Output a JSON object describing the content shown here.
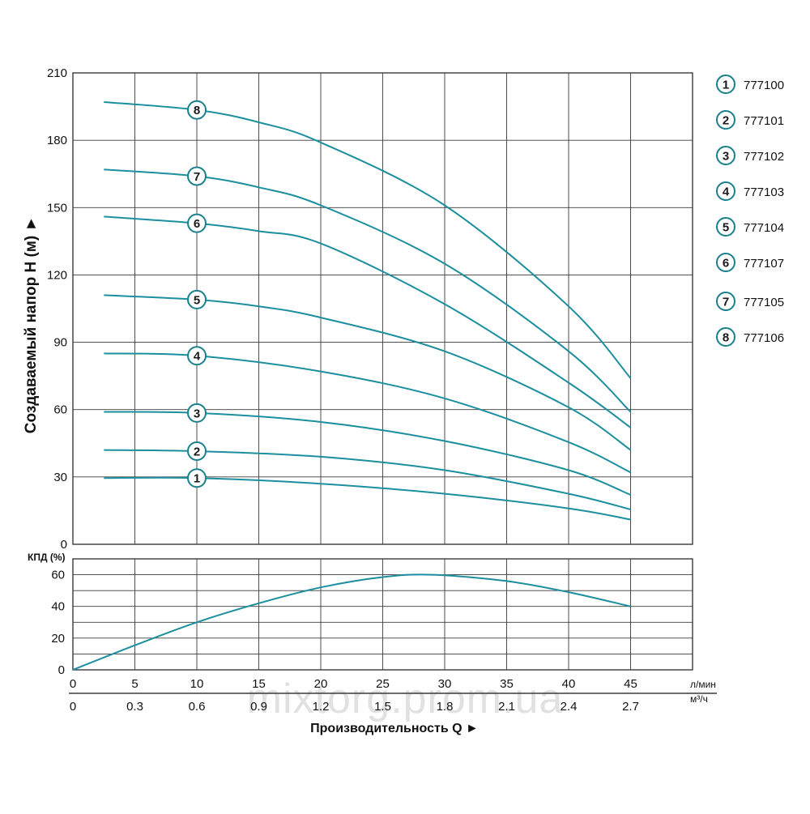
{
  "colors": {
    "curve": "#1b8f9e",
    "grid": "#3a3a3a",
    "marker_stroke": "#1b7f8c"
  },
  "watermark": "mixtorg.prom.ua",
  "chart_data": [
    {
      "type": "line",
      "title": "",
      "ylabel": "Создаваемый напор H (м) ►",
      "xlabel": "",
      "xlim": [
        0,
        50
      ],
      "ylim": [
        0,
        210
      ],
      "yticks": [
        "0",
        "30",
        "60",
        "90",
        "120",
        "150",
        "180",
        "210"
      ],
      "grid": true,
      "legend": "right",
      "legend_entries": [
        {
          "marker": "1",
          "label": "777100"
        },
        {
          "marker": "2",
          "label": "777101"
        },
        {
          "marker": "3",
          "label": "777102"
        },
        {
          "marker": "4",
          "label": "777103"
        },
        {
          "marker": "5",
          "label": "777104"
        },
        {
          "marker": "6",
          "label": "777107"
        },
        {
          "marker": "7",
          "label": "777105"
        },
        {
          "marker": "8",
          "label": "777106"
        }
      ],
      "series": [
        {
          "marker": "1",
          "x": [
            2.5,
            10,
            20,
            30,
            40,
            45
          ],
          "y": [
            29.5,
            29.5,
            27,
            22.5,
            16,
            11
          ],
          "label_x": 10
        },
        {
          "marker": "2",
          "x": [
            2.5,
            10,
            20,
            30,
            40,
            45
          ],
          "y": [
            42,
            41.5,
            39,
            33,
            22.5,
            15.5
          ],
          "label_x": 10
        },
        {
          "marker": "3",
          "x": [
            2.5,
            10,
            20,
            30,
            40,
            45
          ],
          "y": [
            59,
            58.5,
            54.5,
            46,
            33,
            22
          ],
          "label_x": 10
        },
        {
          "marker": "4",
          "x": [
            2.5,
            10,
            20,
            30,
            40,
            45
          ],
          "y": [
            85,
            84,
            77,
            65,
            45.5,
            32
          ],
          "label_x": 10
        },
        {
          "marker": "5",
          "x": [
            2.5,
            10,
            15,
            20,
            30,
            40,
            45
          ],
          "y": [
            111,
            109,
            106,
            101,
            86,
            61,
            42
          ],
          "label_x": 10
        },
        {
          "marker": "6",
          "x": [
            2.5,
            10,
            15,
            20,
            30,
            40,
            45
          ],
          "y": [
            146,
            143,
            139.5,
            134,
            107,
            72,
            52
          ],
          "label_x": 10
        },
        {
          "marker": "7",
          "x": [
            2.5,
            10,
            15,
            20,
            30,
            40,
            45
          ],
          "y": [
            167,
            164,
            159,
            151,
            125,
            86,
            59
          ],
          "label_x": 10
        },
        {
          "marker": "8",
          "x": [
            2.5,
            10,
            15,
            20,
            30,
            40,
            45
          ],
          "y": [
            197,
            193.5,
            188,
            179,
            151,
            106,
            74
          ],
          "label_x": 10
        }
      ]
    },
    {
      "type": "line",
      "title": "",
      "ylabel": "КПД (%)",
      "xlabel": "Производительность Q ►",
      "xlim": [
        0,
        50
      ],
      "ylim": [
        0,
        70
      ],
      "yticks": [
        "0",
        "20",
        "40",
        "60"
      ],
      "grid": true,
      "x_axis_lpm": {
        "unit": "л/мин",
        "ticks": [
          "0",
          "5",
          "10",
          "15",
          "20",
          "25",
          "30",
          "35",
          "40",
          "45"
        ]
      },
      "x_axis_m3h": {
        "unit": "м³/ч",
        "ticks": [
          "0",
          "0.3",
          "0.6",
          "0.9",
          "1.2",
          "1.5",
          "1.8",
          "2.1",
          "2.4",
          "2.7"
        ]
      },
      "series": [
        {
          "x": [
            0,
            5,
            10,
            15,
            20,
            25,
            29,
            35,
            40,
            45
          ],
          "y": [
            0,
            15.5,
            30,
            42,
            52,
            58.5,
            60,
            56,
            49,
            40
          ]
        }
      ]
    }
  ]
}
